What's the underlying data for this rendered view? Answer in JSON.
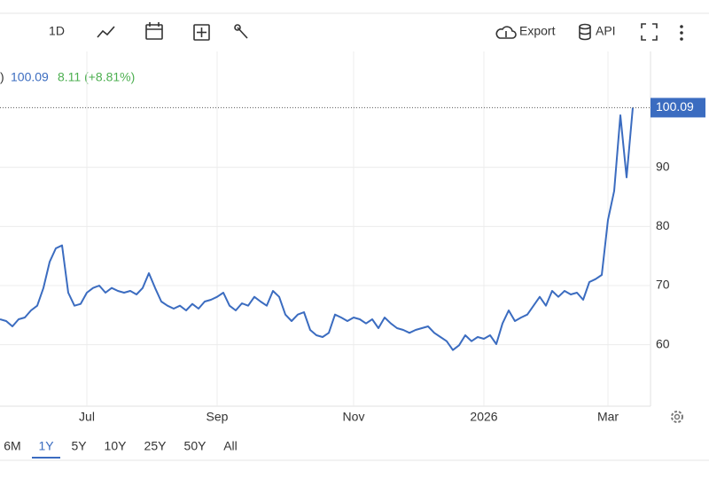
{
  "toolbar": {
    "interval": "1D",
    "export": "Export",
    "api": "API"
  },
  "legend": {
    "prefix": ")",
    "change": "8.11 (+8.81%)"
  },
  "ranges": [
    "6M",
    "1Y",
    "5Y",
    "10Y",
    "25Y",
    "50Y",
    "All"
  ],
  "selected_range": "1Y",
  "chart_data": {
    "type": "line",
    "categories": [
      null,
      null,
      null,
      null,
      null,
      null,
      null,
      null,
      null,
      null,
      null,
      null,
      null,
      null,
      "Jul",
      null,
      null,
      null,
      null,
      null,
      null,
      null,
      null,
      null,
      null,
      null,
      null,
      null,
      null,
      null,
      null,
      null,
      null,
      null,
      null,
      "Sep",
      null,
      null,
      null,
      null,
      null,
      null,
      null,
      null,
      null,
      null,
      null,
      null,
      null,
      null,
      null,
      null,
      null,
      null,
      null,
      null,
      null,
      "Nov",
      null,
      null,
      null,
      null,
      null,
      null,
      null,
      null,
      null,
      null,
      null,
      null,
      null,
      null,
      null,
      null,
      null,
      null,
      null,
      null,
      "2026",
      null,
      null,
      null,
      null,
      null,
      null,
      null,
      null,
      null,
      null,
      null,
      null,
      null,
      null,
      null,
      null,
      null,
      null,
      null,
      "Mar",
      null,
      null,
      null,
      null
    ],
    "series": [
      {
        "color": "#3b6cc0",
        "values": [
          64.3,
          64,
          63.1,
          64.3,
          64.6,
          65.8,
          66.6,
          69.6,
          74,
          76.3,
          76.8,
          68.8,
          66.6,
          66.9,
          68.8,
          69.6,
          70,
          68.8,
          69.6,
          69.1,
          68.8,
          69.1,
          68.5,
          69.6,
          72.1,
          69.6,
          67.3,
          66.6,
          66.1,
          66.6,
          65.8,
          66.9,
          66.1,
          67.3,
          67.6,
          68.1,
          68.8,
          66.6,
          65.8,
          67,
          66.6,
          68.1,
          67.3,
          66.6,
          69.1,
          68.1,
          65.1,
          64,
          65.1,
          65.5,
          62.5,
          61.6,
          61.3,
          62,
          65.1,
          64.6,
          64,
          64.6,
          64.3,
          63.6,
          64.3,
          62.8,
          64.6,
          63.6,
          62.8,
          62.5,
          62,
          62.5,
          62.8,
          63.1,
          62,
          61.3,
          60.6,
          59.1,
          59.9,
          61.6,
          60.6,
          61.3,
          61,
          61.6,
          60.1,
          63.6,
          65.8,
          64,
          64.6,
          65.1,
          66.6,
          68.1,
          66.6,
          69.1,
          68.1,
          69.1,
          68.5,
          68.8,
          67.6,
          70.6,
          71.1,
          71.8,
          81.1,
          86,
          98.8,
          88.3,
          100.09
        ]
      }
    ],
    "ylim": [
      49.6,
      109.6
    ],
    "yticks": [
      60,
      70,
      80,
      90
    ],
    "grid": true
  }
}
